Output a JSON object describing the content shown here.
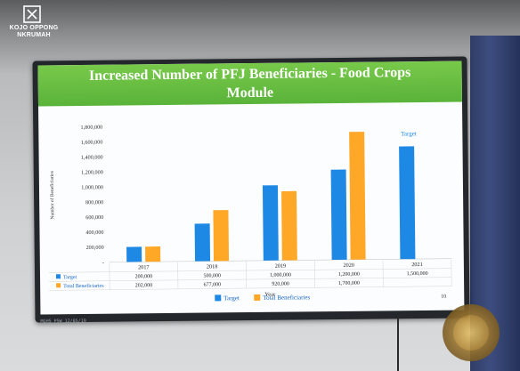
{
  "logo": {
    "name": "KOJO OPPONG\nNKRUMAH",
    "line1": "KOJO OPPONG",
    "line2": "NKRUMAH"
  },
  "slide": {
    "title": "Increased Number of PFJ Beneficiaries - Food Crops\nModule",
    "page_number": "10",
    "footer_text": "MGHS PSW 12/05/19"
  },
  "colors": {
    "target": "#1e88e5",
    "total_beneficiaries": "#ffa726",
    "title_band": "#5ab33a"
  },
  "seal_name": "Ministry of Information",
  "chart_data": {
    "type": "bar",
    "title": "Increased Number of PFJ Beneficiaries - Food Crops Module",
    "xlabel": "Year",
    "ylabel": "Number of Beneficiaries",
    "categories": [
      "2017",
      "2018",
      "2019",
      "2020",
      "2021"
    ],
    "ylim": [
      0,
      1800000
    ],
    "yticks": [
      "-",
      "200,000",
      "400,000",
      "600,000",
      "800,000",
      "1,000,000",
      "1,200,000",
      "1,400,000",
      "1,600,000",
      "1,800,000"
    ],
    "series": [
      {
        "name": "Target",
        "color": "#1e88e5",
        "values": [
          200000,
          500000,
          1000000,
          1200000,
          1500000
        ],
        "labels": [
          "200,000",
          "500,000",
          "1,000,000",
          "1,200,000",
          "1,500,000"
        ]
      },
      {
        "name": "Total Beneficiaries",
        "color": "#ffa726",
        "values": [
          202000,
          677000,
          920000,
          1700000,
          null
        ],
        "labels": [
          "202,000",
          "677,000",
          "920,000",
          "1,700,000",
          ""
        ]
      }
    ],
    "annotations": [
      "Target"
    ],
    "legend_position": "bottom",
    "data_table": true
  }
}
